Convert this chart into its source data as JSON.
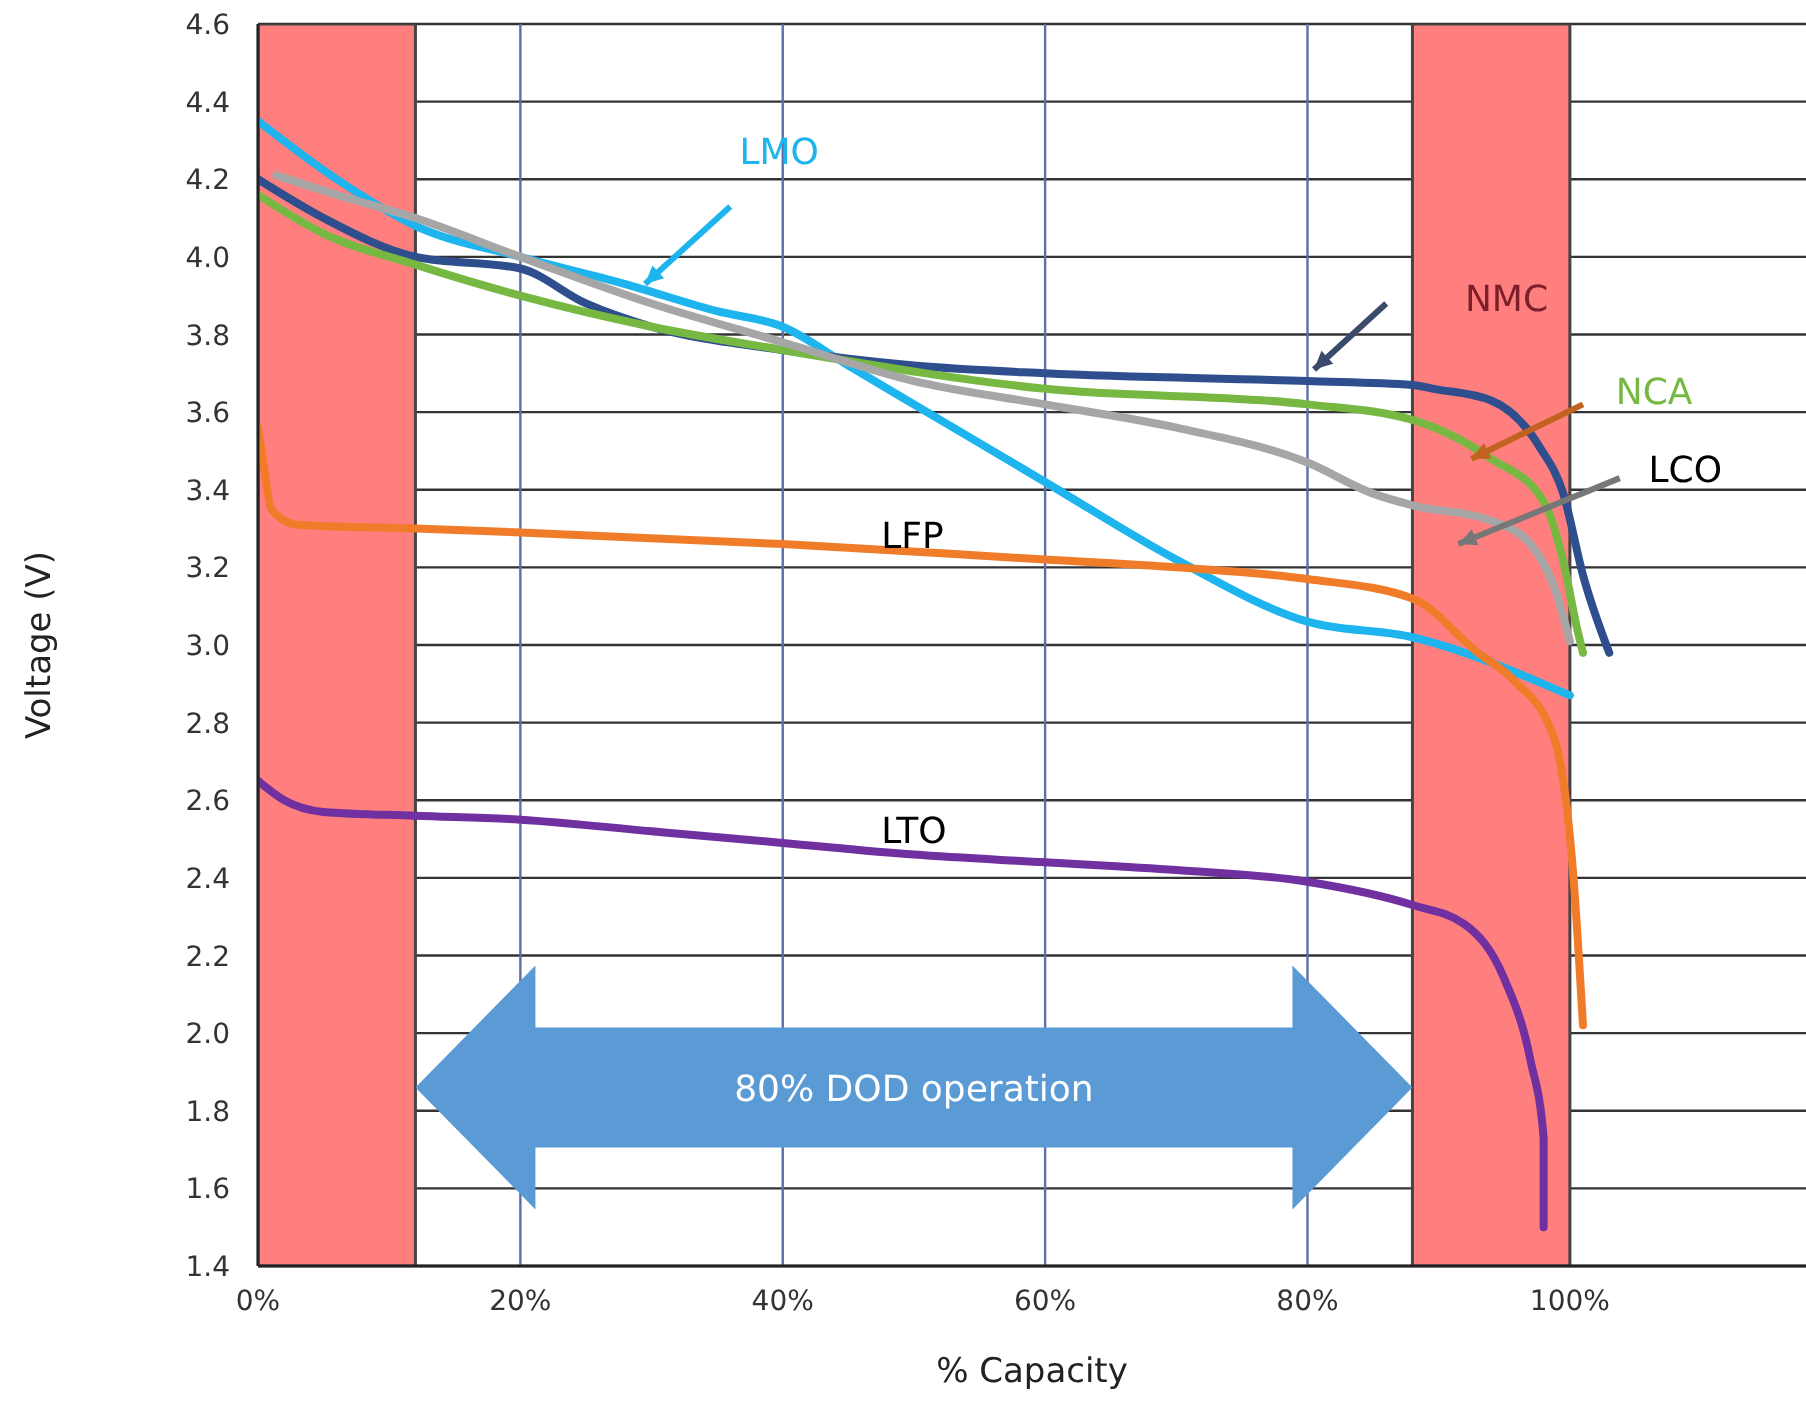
{
  "chart_data": {
    "type": "line",
    "xlabel": "% Capacity",
    "ylabel": "Voltage (V)",
    "xlim": [
      0,
      118
    ],
    "xticks": [
      {
        "value": 0,
        "label": "0%"
      },
      {
        "value": 20,
        "label": "20%"
      },
      {
        "value": 40,
        "label": "40%"
      },
      {
        "value": 60,
        "label": "60%"
      },
      {
        "value": 80,
        "label": "80%"
      },
      {
        "value": 100,
        "label": "100%"
      }
    ],
    "ylim": [
      1.4,
      4.6
    ],
    "yticks": [
      1.4,
      1.6,
      1.8,
      {
        "value": 2,
        "label": "2.0"
      },
      2.2,
      2.4,
      2.6,
      2.8,
      {
        "value": 3,
        "label": "3.0"
      },
      3.2,
      3.4,
      3.6,
      3.8,
      {
        "value": 4,
        "label": "4.0"
      },
      4.2,
      4.4,
      4.6
    ],
    "grid": true,
    "bands": [
      {
        "axis": "x",
        "from": 0,
        "to": 12,
        "color": "#ff7f7f"
      },
      {
        "axis": "x",
        "from": 88,
        "to": 100,
        "color": "#ff7f7f"
      }
    ],
    "annotations": [
      "80% DOD operation"
    ],
    "series": [
      {
        "name": "LMO",
        "color": "#1eb4ee",
        "x": [
          0,
          6,
          12,
          20,
          28,
          35,
          40,
          45,
          52,
          60,
          70,
          80,
          88,
          100
        ],
        "values": [
          4.35,
          4.2,
          4.08,
          4.0,
          3.93,
          3.86,
          3.82,
          3.72,
          3.58,
          3.42,
          3.22,
          3.06,
          3.02,
          2.87
        ]
      },
      {
        "name": "NMC",
        "color": "#2e4e8e",
        "x": [
          0,
          5,
          12,
          20,
          25,
          30,
          40,
          50,
          60,
          80,
          88,
          89.6,
          94,
          97.7,
          99.5,
          101,
          103
        ],
        "values": [
          4.2,
          4.1,
          4.0,
          3.97,
          3.88,
          3.82,
          3.76,
          3.72,
          3.7,
          3.68,
          3.67,
          3.66,
          3.63,
          3.51,
          3.39,
          3.18,
          2.98
        ]
      },
      {
        "name": "NCA",
        "color": "#77b843",
        "x": [
          0,
          5,
          12,
          20,
          30,
          40,
          60,
          80,
          88,
          94,
          98,
          99.6,
          100.5,
          101
        ],
        "values": [
          4.16,
          4.06,
          3.98,
          3.9,
          3.82,
          3.76,
          3.66,
          3.62,
          3.58,
          3.48,
          3.37,
          3.2,
          3.05,
          2.98
        ]
      },
      {
        "name": "LCO",
        "color": "#a6a6a6",
        "x": [
          1.4,
          6,
          12,
          20,
          30,
          40,
          50,
          60,
          70,
          80,
          85,
          88,
          94,
          97,
          99,
          100
        ],
        "values": [
          4.21,
          4.16,
          4.1,
          4.0,
          3.88,
          3.78,
          3.68,
          3.62,
          3.56,
          3.47,
          3.39,
          3.36,
          3.32,
          3.26,
          3.13,
          3.01
        ]
      },
      {
        "name": "LFP",
        "color": "#f07c2a",
        "x": [
          0,
          0.5,
          1,
          3,
          12,
          20,
          40,
          60,
          70,
          80,
          88,
          93,
          95.7,
          98.8,
          100.3,
          101
        ],
        "values": [
          3.56,
          3.45,
          3.35,
          3.31,
          3.3,
          3.29,
          3.26,
          3.22,
          3.2,
          3.17,
          3.12,
          2.98,
          2.91,
          2.76,
          2.39,
          2.02
        ]
      },
      {
        "name": "LTO",
        "color": "#7030a0",
        "x": [
          0,
          2,
          5,
          12,
          20,
          30,
          40,
          50,
          60,
          70,
          80,
          88,
          92,
          95,
          97,
          98,
          98
        ],
        "values": [
          2.65,
          2.6,
          2.57,
          2.56,
          2.55,
          2.52,
          2.49,
          2.46,
          2.44,
          2.42,
          2.39,
          2.33,
          2.28,
          2.14,
          1.93,
          1.73,
          1.5
        ]
      }
    ]
  }
}
